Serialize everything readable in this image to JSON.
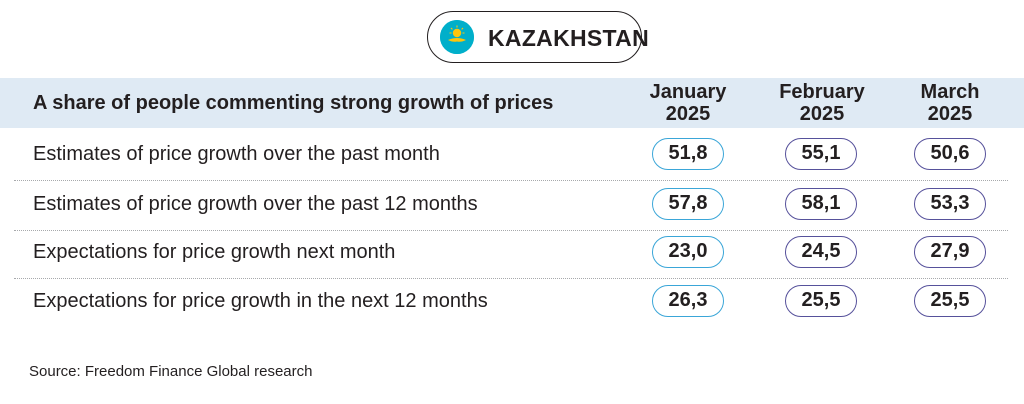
{
  "badge": {
    "country": "KAZAKHSTAN",
    "flag_icon": "kazakhstan-flag-icon",
    "flag_color": "#00afca",
    "emblem_color": "#fec50c"
  },
  "chart_data": {
    "type": "table",
    "title": "A share of people commenting strong growth of prices",
    "columns": [
      {
        "month": "January",
        "year": "2025"
      },
      {
        "month": "February",
        "year": "2025"
      },
      {
        "month": "March",
        "year": "2025"
      }
    ],
    "rows": [
      {
        "label": "Estimates of price growth over the past month",
        "values": [
          "51,8",
          "55,1",
          "50,6"
        ]
      },
      {
        "label": "Estimates of price growth over the past 12 months",
        "values": [
          "57,8",
          "58,1",
          "53,3"
        ]
      },
      {
        "label": "Expectations for price growth next month",
        "values": [
          "23,0",
          "24,5",
          "27,9"
        ]
      },
      {
        "label": "Expectations for price growth in the next 12 months",
        "values": [
          "26,3",
          "25,5",
          "25,5"
        ]
      }
    ],
    "colors": {
      "header_band": "#dfeaf4",
      "january_border": "#3aa6d8",
      "other_border": "#56519b"
    }
  },
  "source": "Source: Freedom Finance Global research"
}
